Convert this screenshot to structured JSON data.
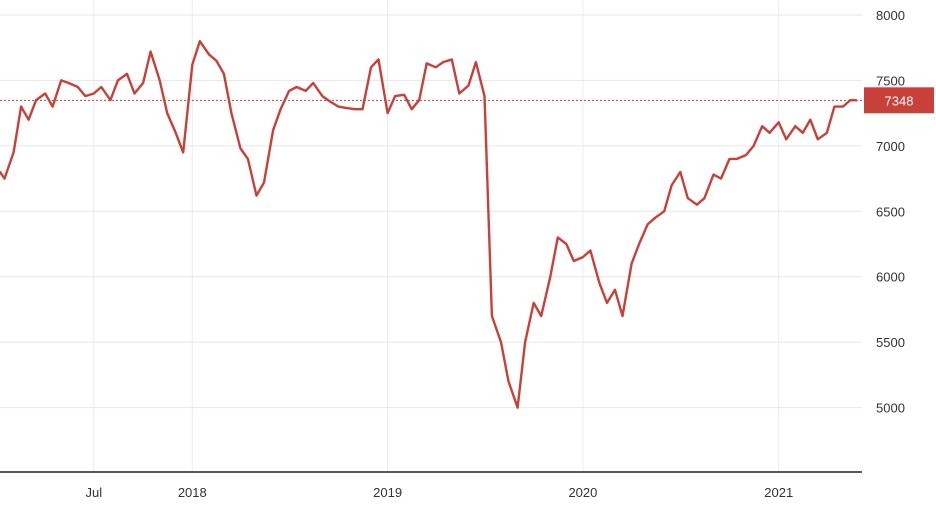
{
  "chart_data": {
    "type": "line",
    "title": "",
    "xlabel": "",
    "ylabel": "",
    "ylim": [
      4500,
      8000
    ],
    "xlim": [
      "2017-01-01",
      "2021-05-31"
    ],
    "grid": true,
    "legend": "none",
    "y_ticks": [
      5000,
      5500,
      6000,
      6500,
      7000,
      7500,
      8000
    ],
    "y_tick_labels": [
      "5000",
      "5500",
      "6000",
      "6500",
      "7000",
      "7500",
      "8000"
    ],
    "x_ticks": [
      "2017-07-01",
      "2018-01-01",
      "2019-01-01",
      "2020-01-01",
      "2021-01-01"
    ],
    "x_tick_labels": [
      "Jul",
      "2018",
      "2019",
      "2020",
      "2021"
    ],
    "last_value": 7348,
    "last_value_label": "7348",
    "line_color": "#c9403a",
    "series": [
      {
        "x": [
          "2017-01-01",
          "2017-01-15",
          "2017-02-01",
          "2017-02-15",
          "2017-03-01",
          "2017-03-15",
          "2017-04-01",
          "2017-04-15",
          "2017-05-01",
          "2017-05-15",
          "2017-06-01",
          "2017-06-15",
          "2017-07-01",
          "2017-07-15",
          "2017-08-01",
          "2017-08-15",
          "2017-09-01",
          "2017-09-15",
          "2017-10-01",
          "2017-10-15",
          "2017-11-01",
          "2017-11-15",
          "2017-12-01",
          "2017-12-15",
          "2018-01-01",
          "2018-01-15",
          "2018-02-01",
          "2018-02-15",
          "2018-03-01",
          "2018-03-15",
          "2018-04-01",
          "2018-04-15",
          "2018-05-01",
          "2018-05-15",
          "2018-06-01",
          "2018-06-15",
          "2018-07-01",
          "2018-07-15",
          "2018-08-01",
          "2018-08-15",
          "2018-09-01",
          "2018-09-15",
          "2018-10-01",
          "2018-10-15",
          "2018-11-01",
          "2018-11-15",
          "2018-12-01",
          "2018-12-15",
          "2019-01-01",
          "2019-01-15",
          "2019-02-01",
          "2019-02-15",
          "2019-03-01",
          "2019-03-15",
          "2019-04-01",
          "2019-04-15",
          "2019-05-01",
          "2019-05-15",
          "2019-06-01",
          "2019-06-15",
          "2019-07-01",
          "2019-07-15",
          "2019-08-01",
          "2019-08-15",
          "2019-09-01",
          "2019-09-15",
          "2019-10-01",
          "2019-10-15",
          "2019-11-01",
          "2019-11-15",
          "2019-12-01",
          "2019-12-15",
          "2020-01-01",
          "2020-01-15",
          "2020-02-01",
          "2020-02-15",
          "2020-03-01",
          "2020-03-15",
          "2020-04-01",
          "2020-04-15",
          "2020-05-01",
          "2020-05-15",
          "2020-06-01",
          "2020-06-15",
          "2020-07-01",
          "2020-07-15",
          "2020-08-01",
          "2020-08-15",
          "2020-09-01",
          "2020-09-15",
          "2020-10-01",
          "2020-10-15",
          "2020-11-01",
          "2020-11-15",
          "2020-12-01",
          "2020-12-15",
          "2021-01-01",
          "2021-01-15",
          "2021-02-01",
          "2021-02-15",
          "2021-03-01",
          "2021-03-15",
          "2021-04-01",
          "2021-04-15",
          "2021-05-01",
          "2021-05-15",
          "2021-05-28"
        ],
        "values": [
          6800,
          6750,
          6950,
          7300,
          7200,
          7350,
          7400,
          7300,
          7500,
          7480,
          7450,
          7380,
          7400,
          7450,
          7350,
          7500,
          7550,
          7400,
          7480,
          7720,
          7500,
          7250,
          7100,
          6950,
          7620,
          7800,
          7700,
          7650,
          7550,
          7250,
          6980,
          6900,
          6620,
          6720,
          7120,
          7280,
          7420,
          7450,
          7420,
          7480,
          7380,
          7340,
          7300,
          7290,
          7280,
          7280,
          7600,
          7660,
          7250,
          7380,
          7390,
          7280,
          7350,
          7630,
          7600,
          7640,
          7660,
          7400,
          7460,
          7640,
          7380,
          5700,
          5500,
          5200,
          5000,
          5500,
          5800,
          5700,
          6000,
          6300,
          6250,
          6120,
          6150,
          6200,
          5950,
          5800,
          5900,
          5700,
          6100,
          6250,
          6400,
          6450,
          6500,
          6700,
          6800,
          6600,
          6550,
          6600,
          6780,
          6750,
          6900,
          6900,
          6930,
          7000,
          7150,
          7100,
          7180,
          7050,
          7150,
          7100,
          7200,
          7050,
          7100,
          7300,
          7300,
          7350,
          7348
        ]
      }
    ]
  }
}
